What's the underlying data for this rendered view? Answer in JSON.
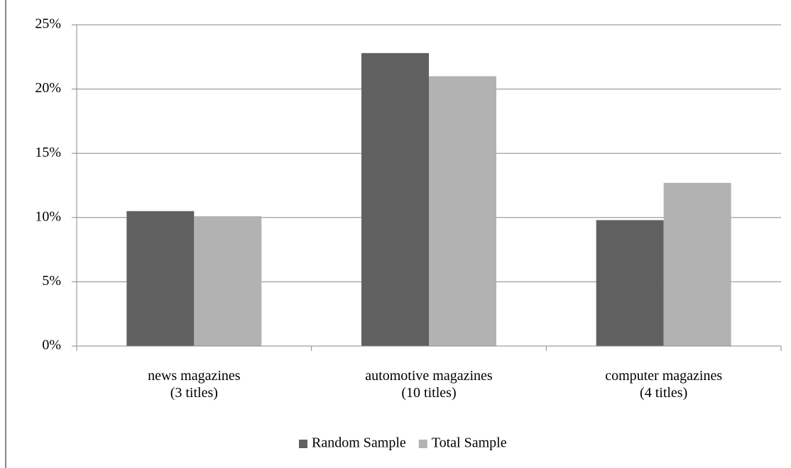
{
  "chart_data": {
    "type": "bar",
    "categories": [
      "news magazines\n(3 titles)",
      "automotive magazines\n(10 titles)",
      "computer magazines\n(4 titles)"
    ],
    "series": [
      {
        "name": "Random Sample",
        "color": "#606060",
        "values": [
          10.5,
          22.8,
          9.8
        ]
      },
      {
        "name": "Total Sample",
        "color": "#b2b2b2",
        "values": [
          10.1,
          21.0,
          12.7
        ]
      }
    ],
    "ylim": [
      0,
      25
    ],
    "yticks": [
      {
        "value": 0,
        "label": "0%"
      },
      {
        "value": 5,
        "label": "5%"
      },
      {
        "value": 10,
        "label": "10%"
      },
      {
        "value": 15,
        "label": "15%"
      },
      {
        "value": 20,
        "label": "20%"
      },
      {
        "value": 25,
        "label": "25%"
      }
    ],
    "grid": true,
    "legend": "bottom"
  }
}
